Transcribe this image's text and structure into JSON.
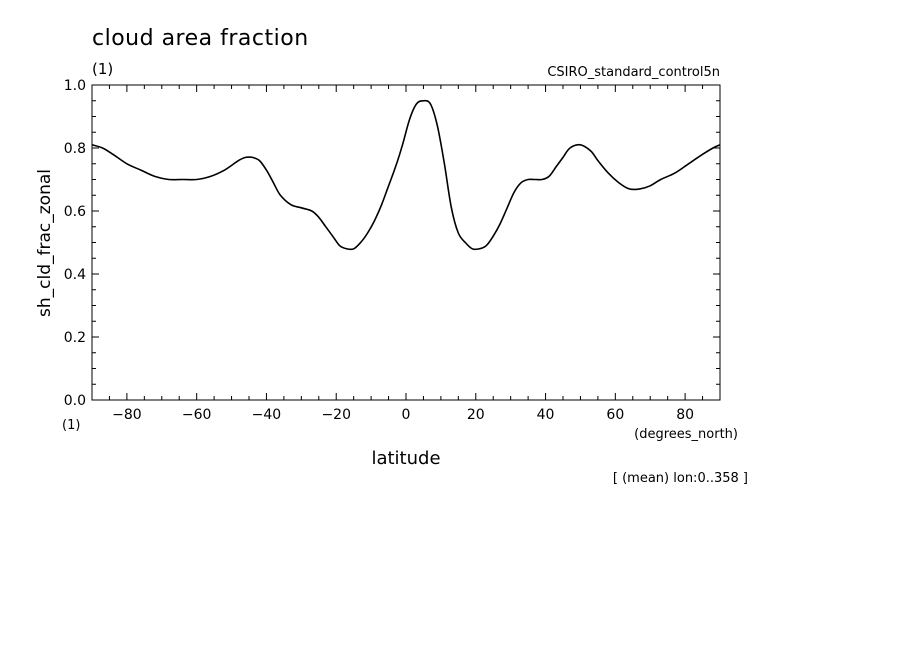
{
  "chart_data": {
    "type": "line",
    "title": "cloud area fraction",
    "title_units": "(1)",
    "dataset_label": "CSIRO_standard_control5n",
    "xlabel": "latitude",
    "xunits": "(degrees_north)",
    "ylabel": "sh_cld_frac_zonal",
    "yunits": "(1)",
    "footnote": "[ (mean) lon:0..358 ]",
    "xlim": [
      -90,
      90
    ],
    "ylim": [
      0.0,
      1.0
    ],
    "x_ticks": [
      -80,
      -60,
      -40,
      -20,
      0,
      20,
      40,
      60,
      80
    ],
    "x_tick_labels": [
      "−80",
      "−60",
      "−40",
      "−20",
      "0",
      "20",
      "40",
      "60",
      "80"
    ],
    "y_ticks": [
      0.0,
      0.2,
      0.4,
      0.6,
      0.8,
      1.0
    ],
    "y_tick_labels": [
      "0.0",
      "0.2",
      "0.4",
      "0.6",
      "0.8",
      "1.0"
    ],
    "grid": false,
    "line_color": "#000000",
    "series": [
      {
        "x": [
          -90,
          -87,
          -84,
          -80,
          -76,
          -72,
          -68,
          -64,
          -60,
          -56,
          -52,
          -48,
          -46,
          -44,
          -42,
          -40,
          -38,
          -36,
          -33,
          -30,
          -27,
          -25,
          -23,
          -21,
          -19,
          -17,
          -15,
          -13,
          -11,
          -9,
          -7,
          -5,
          -3,
          -1,
          1,
          3,
          5,
          7,
          9,
          11,
          13,
          15,
          17,
          19,
          21,
          23,
          25,
          27,
          29,
          31,
          33,
          35,
          37,
          39,
          41,
          43,
          45,
          47,
          50,
          53,
          55,
          58,
          61,
          64,
          67,
          70,
          73,
          77,
          81,
          85,
          88,
          90
        ],
        "y": [
          0.81,
          0.8,
          0.78,
          0.75,
          0.73,
          0.71,
          0.7,
          0.7,
          0.7,
          0.71,
          0.73,
          0.76,
          0.77,
          0.77,
          0.76,
          0.73,
          0.69,
          0.65,
          0.62,
          0.61,
          0.6,
          0.58,
          0.55,
          0.52,
          0.49,
          0.48,
          0.48,
          0.5,
          0.53,
          0.57,
          0.62,
          0.68,
          0.74,
          0.81,
          0.89,
          0.94,
          0.95,
          0.94,
          0.87,
          0.75,
          0.61,
          0.53,
          0.5,
          0.48,
          0.48,
          0.49,
          0.52,
          0.56,
          0.61,
          0.66,
          0.69,
          0.7,
          0.7,
          0.7,
          0.71,
          0.74,
          0.77,
          0.8,
          0.81,
          0.79,
          0.76,
          0.72,
          0.69,
          0.67,
          0.67,
          0.68,
          0.7,
          0.72,
          0.75,
          0.78,
          0.8,
          0.81
        ]
      }
    ]
  }
}
